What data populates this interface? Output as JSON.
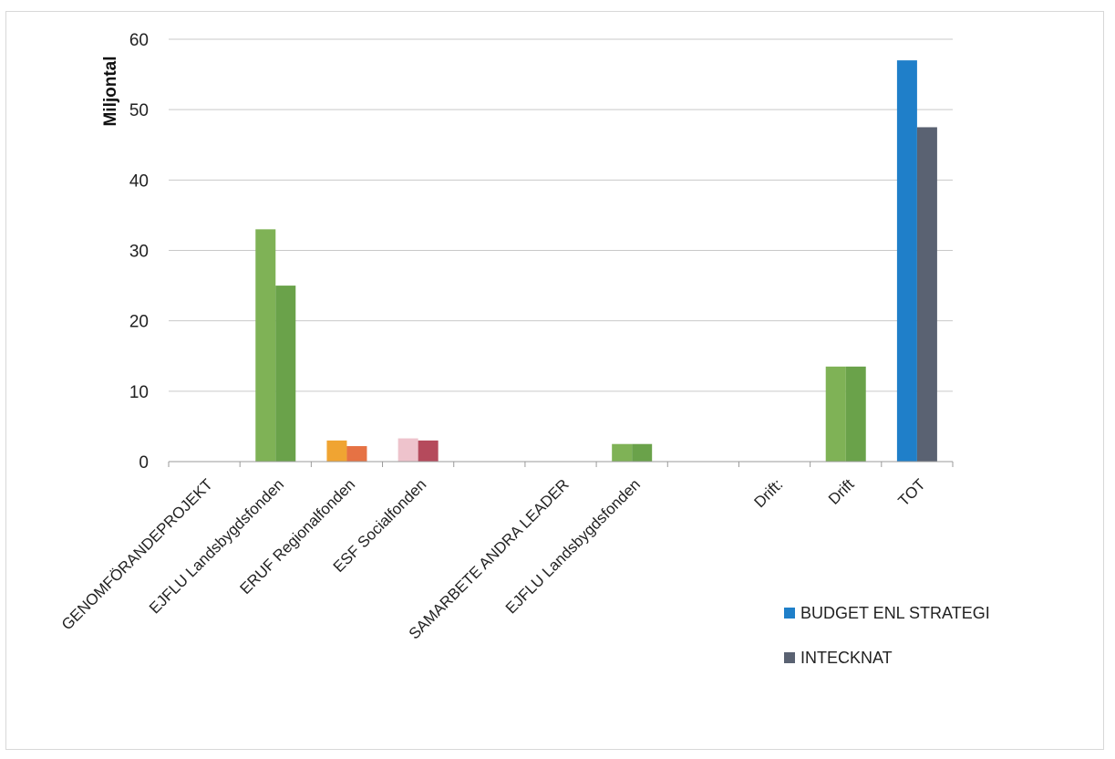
{
  "chart_data": {
    "type": "bar",
    "ylabel": "Miljontal",
    "ylim": [
      0,
      60
    ],
    "yticks": [
      0,
      10,
      20,
      30,
      40,
      50,
      60
    ],
    "grid": true,
    "legend_position": "bottom-right",
    "categories": [
      "GENOMFÖRANDEPROJEKT",
      "EJFLU Landsbygdsfonden",
      "ERUF Regionalfonden",
      "ESF Socialfonden",
      "",
      "SAMARBETE ANDRA LEADER",
      "EJFLU Landsbygdsfonden",
      "",
      "Drift:",
      "Drift",
      "TOT"
    ],
    "series": [
      {
        "name": "BUDGET ENL STRATEGI",
        "color": "#1f7fc9",
        "values": [
          0,
          33,
          3,
          3.3,
          0,
          0,
          2.5,
          0,
          0,
          13.5,
          57
        ],
        "bar_colors": [
          "#7fb256",
          "#7fb256",
          "#f0a432",
          "#eec3cc",
          "#7fb256",
          "#7fb256",
          "#7fb256",
          "#7fb256",
          "#7fb256",
          "#7fb256",
          "#1f7fc9"
        ]
      },
      {
        "name": "INTECKNAT",
        "color": "#5a6272",
        "values": [
          0,
          25,
          2.2,
          3,
          0,
          0,
          2.5,
          0,
          0,
          13.5,
          47.5
        ],
        "bar_colors": [
          "#6aa24a",
          "#6aa24a",
          "#e67244",
          "#b54a5c",
          "#6aa24a",
          "#6aa24a",
          "#6aa24a",
          "#6aa24a",
          "#6aa24a",
          "#6aa24a",
          "#5a6272"
        ]
      }
    ]
  }
}
